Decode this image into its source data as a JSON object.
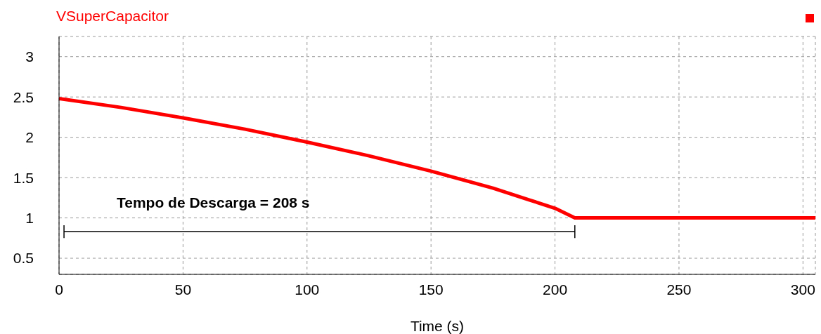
{
  "chart_data": {
    "type": "line",
    "xlabel": "Time (s)",
    "x": [
      0,
      25,
      50,
      75,
      100,
      125,
      150,
      175,
      190,
      200,
      208,
      305
    ],
    "series": [
      {
        "name": "VSuperCapacitor",
        "color": "#ff0000",
        "values": [
          2.48,
          2.37,
          2.24,
          2.1,
          1.94,
          1.77,
          1.58,
          1.37,
          1.22,
          1.12,
          1.0,
          1.0
        ]
      },
      {
        "type": "line",
        "color": "#000000",
        "x": [
          2,
          208
        ],
        "values": [
          0.83,
          0.83
        ],
        "errors": [
          0.08,
          0.08
        ]
      }
    ],
    "xlim": [
      0,
      305
    ],
    "xticks": [
      0,
      50,
      100,
      150,
      200,
      250,
      300
    ],
    "ylim": [
      0.3,
      3.25
    ],
    "yticks": [
      0.5,
      1,
      1.5,
      2,
      2.5,
      3
    ],
    "grid": true,
    "legend": "top",
    "marker": "none",
    "line_style": "solid",
    "annotations": [
      "Tempo de Descarga = 208 s"
    ]
  }
}
